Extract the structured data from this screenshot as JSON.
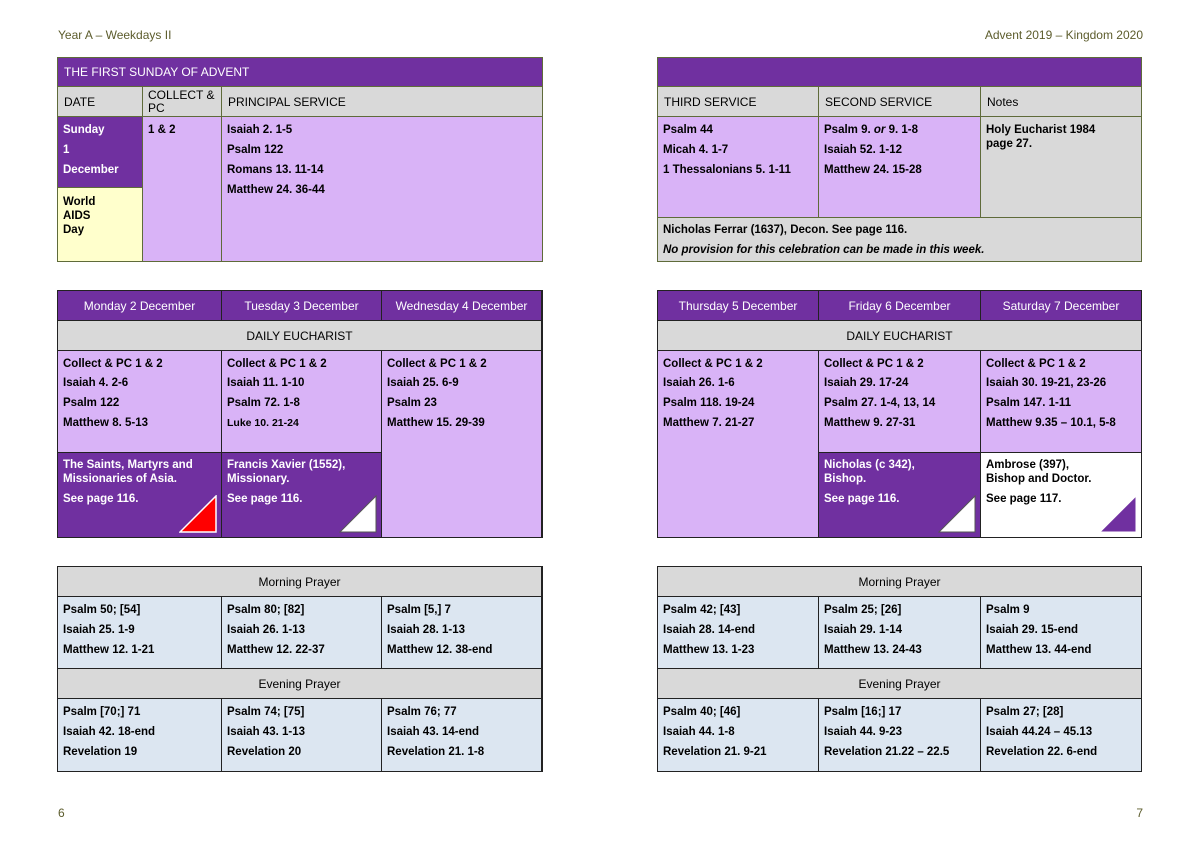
{
  "header": {
    "left": "Year A – Weekdays II",
    "right": "Advent 2019 – Kingdom 2020"
  },
  "page_numbers": {
    "left": "6",
    "right": "7"
  },
  "sunday": {
    "title": "THE FIRST SUNDAY OF ADVENT",
    "columns": [
      "DATE",
      "COLLECT & PC",
      "PRINCIPAL SERVICE",
      "THIRD SERVICE",
      "SECOND SERVICE",
      "Notes"
    ],
    "date_lines": [
      "Sunday",
      "1",
      "December"
    ],
    "observance": [
      "World",
      "AIDS",
      "Day"
    ],
    "collect": "1 & 2",
    "principal": [
      "Isaiah 2. 1-5",
      "Psalm 122",
      "Romans 13. 11-14",
      "Matthew 24. 36-44"
    ],
    "third": [
      "Psalm 44",
      "Micah 4. 1-7",
      "1 Thessalonians 5. 1-11"
    ],
    "second": {
      "psalm_a": "Psalm 9.",
      "psalm_or": "or",
      "psalm_b": "9. 1-8",
      "lines": [
        "Isaiah 52. 1-12",
        "Matthew 24. 15-28"
      ]
    },
    "notes": [
      "Holy Eucharist 1984",
      "page 27."
    ],
    "footer_note": "Nicholas Ferrar (1637), Decon. See page 116.",
    "footer_italic": "No provision for this celebration can be made in this week."
  },
  "weekdays": {
    "section_label": "DAILY EUCHARIST",
    "days": [
      {
        "name": "Monday 2 December",
        "readings": [
          "Collect & PC 1 & 2",
          "Isaiah 4. 2-6",
          "Psalm 122",
          "Matthew 8. 5-13"
        ],
        "saint": [
          "The Saints, Martyrs and",
          "Missionaries of Asia."
        ],
        "see": "See page 116.",
        "saint_color": "#7030a0",
        "corner": "red"
      },
      {
        "name": "Tuesday 3 December",
        "readings": [
          "Collect & PC 1 & 2",
          "Isaiah 11. 1-10",
          "Psalm 72. 1-8",
          "Luke 10. 21-24"
        ],
        "saint": [
          "Francis Xavier (1552),",
          "Missionary."
        ],
        "see": "See page 116.",
        "saint_color": "#7030a0",
        "corner": "white"
      },
      {
        "name": "Wednesday 4 December",
        "readings": [
          "Collect & PC 1 & 2",
          "Isaiah 25. 6-9",
          "Psalm 23",
          "Matthew 15. 29-39"
        ]
      },
      {
        "name": "Thursday 5 December",
        "readings": [
          "Collect & PC 1 & 2",
          "Isaiah 26. 1-6",
          "Psalm 118. 19-24",
          "Matthew 7. 21-27"
        ]
      },
      {
        "name": "Friday 6 December",
        "readings": [
          "Collect & PC 1 & 2",
          "Isaiah 29. 17-24",
          "Psalm 27. 1-4, 13, 14",
          "Matthew 9. 27-31"
        ],
        "saint": [
          "Nicholas (c 342),",
          "Bishop."
        ],
        "see": "See page 116.",
        "saint_color": "#7030a0",
        "corner": "white"
      },
      {
        "name": "Saturday 7 December",
        "readings": [
          "Collect & PC 1 & 2",
          "Isaiah 30. 19-21, 23-26",
          "Psalm 147. 1-11",
          "Matthew 9.35 – 10.1, 5-8"
        ],
        "saint": [
          "Ambrose (397),",
          "Bishop and Doctor."
        ],
        "see": "See page 117.",
        "saint_color": "#ffffff",
        "corner": "purple"
      }
    ]
  },
  "office": {
    "morning_label": "Morning Prayer",
    "evening_label": "Evening Prayer",
    "morning": [
      [
        "Psalm 50; [54]",
        "Isaiah 25. 1-9",
        "Matthew 12. 1-21"
      ],
      [
        "Psalm 80; [82]",
        "Isaiah 26. 1-13",
        "Matthew 12. 22-37"
      ],
      [
        "Psalm [5,] 7",
        "Isaiah 28. 1-13",
        "Matthew 12. 38-end"
      ],
      [
        "Psalm 42; [43]",
        "Isaiah 28. 14-end",
        "Matthew 13. 1-23"
      ],
      [
        "Psalm 25; [26]",
        "Isaiah 29. 1-14",
        "Matthew 13. 24-43"
      ],
      [
        "Psalm 9",
        "Isaiah 29. 15-end",
        "Matthew 13. 44-end"
      ]
    ],
    "evening": [
      [
        "Psalm [70;] 71",
        "Isaiah 42. 18-end",
        "Revelation 19"
      ],
      [
        "Psalm 74; [75]",
        "Isaiah 43. 1-13",
        "Revelation 20"
      ],
      [
        "Psalm 76; 77",
        "Isaiah 43. 14-end",
        "Revelation 21. 1-8"
      ],
      [
        "Psalm 40; [46]",
        "Isaiah 44. 1-8",
        "Revelation 21. 9-21"
      ],
      [
        "Psalm [16;] 17",
        "Isaiah 44. 9-23",
        "Revelation 21.22 – 22.5"
      ],
      [
        "Psalm 27; [28]",
        "Isaiah 44.24 – 45.13",
        "Revelation 22. 6-end"
      ]
    ]
  }
}
